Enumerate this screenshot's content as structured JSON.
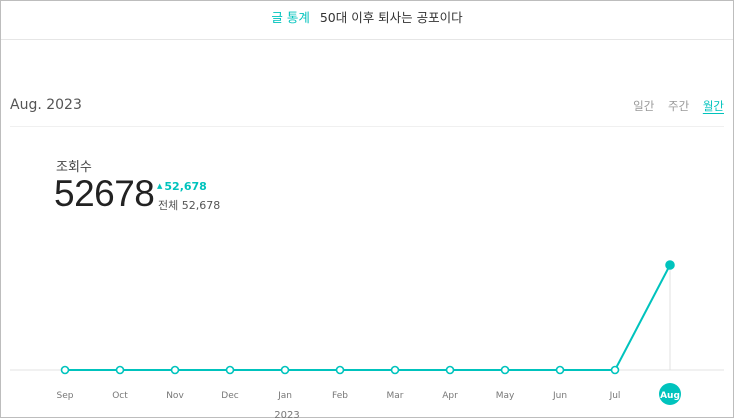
{
  "header": {
    "category": "글 통계",
    "post_title": "50대 이후 퇴사는 공포이다"
  },
  "period_label": "Aug. 2023",
  "tabs": [
    {
      "label": "일간",
      "active": false
    },
    {
      "label": "주간",
      "active": false
    },
    {
      "label": "월간",
      "active": true
    }
  ],
  "metric": {
    "label": "조회수",
    "value": "52678",
    "delta": "52,678",
    "total": "전체 52,678"
  },
  "colors": {
    "accent": "#00c3bd"
  },
  "chart_data": {
    "type": "line",
    "categories": [
      "Sep",
      "Oct",
      "Nov",
      "Dec",
      "Jan",
      "Feb",
      "Mar",
      "Apr",
      "May",
      "Jun",
      "Jul",
      "Aug"
    ],
    "values": [
      0,
      0,
      0,
      0,
      0,
      0,
      0,
      0,
      0,
      0,
      0,
      52678
    ],
    "year_marker": {
      "label": "2023",
      "category": "Jan"
    },
    "selected": "Aug",
    "ylim": [
      0,
      52678
    ]
  }
}
